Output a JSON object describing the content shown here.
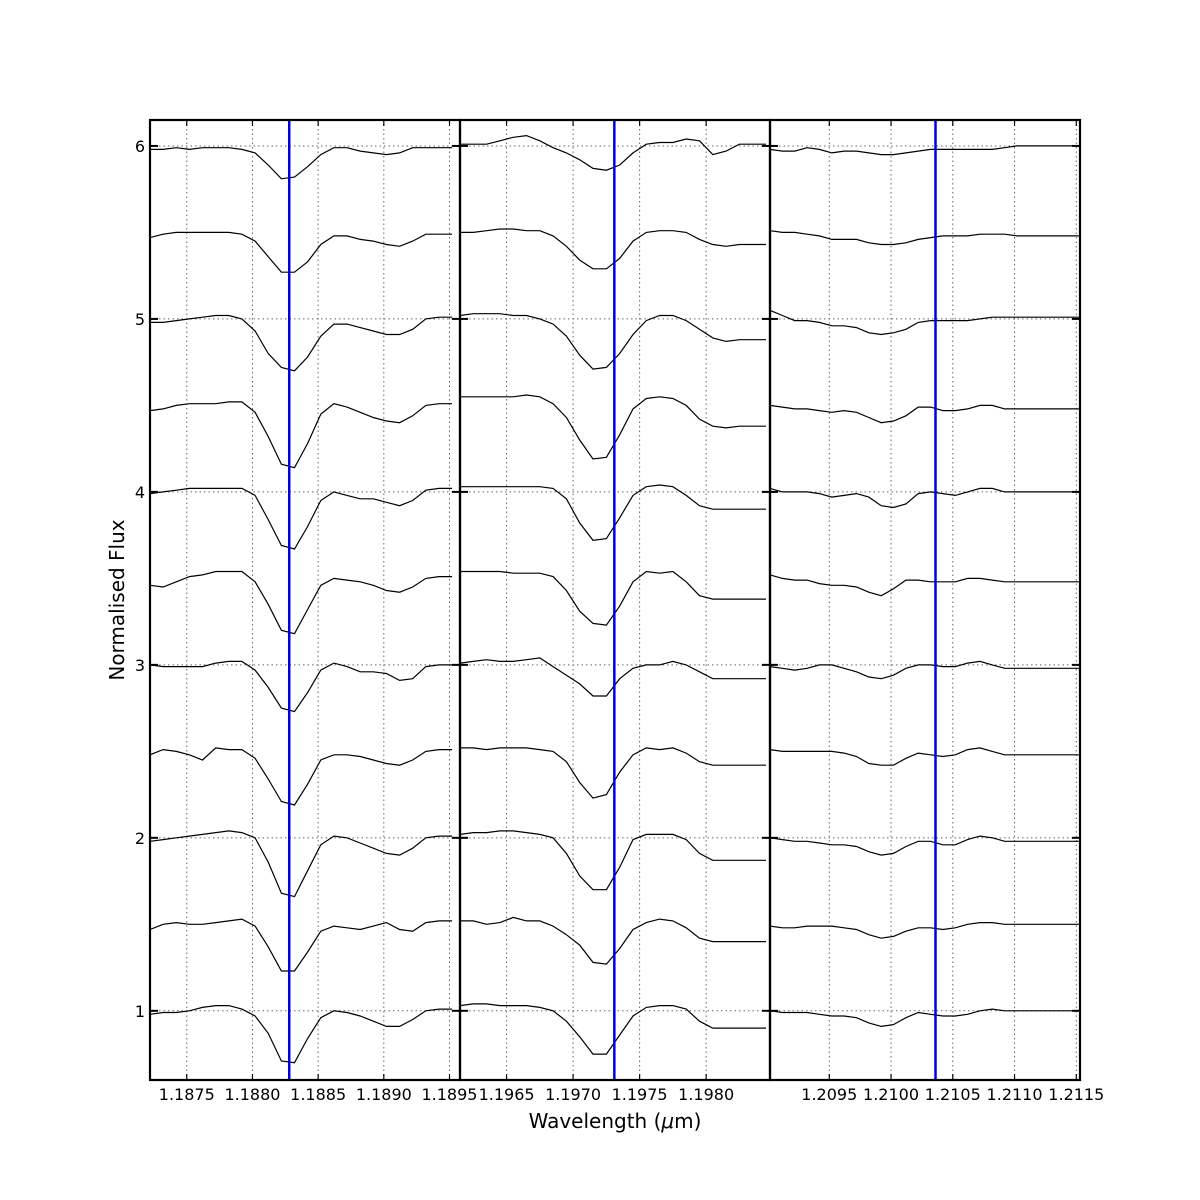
{
  "chart_data": {
    "type": "line",
    "xlabel": "Wavelength ($\\mu$m)",
    "ylabel": "Normalised Flux",
    "ylim": [
      0.6,
      6.15
    ],
    "yticks": [
      1,
      2,
      3,
      4,
      5,
      6
    ],
    "grid": true,
    "colors": {
      "spectra": "#000000",
      "marker": "#0000dd",
      "grid": "#666666"
    },
    "panels": [
      {
        "xlim": [
          1.18722,
          1.18958
        ],
        "xticks": [
          1.1875,
          1.188,
          1.1885,
          1.189,
          1.1895
        ],
        "xtick_labels": [
          "1.1875",
          "1.1880",
          "1.1885",
          "1.1890",
          "1.1895"
        ],
        "marker": 1.18828,
        "x_start": 1.18722,
        "x_step": 0.0001,
        "spectra": [
          [
            5.98,
            5.98,
            5.99,
            5.98,
            5.99,
            5.99,
            5.99,
            5.98,
            5.96,
            5.89,
            5.81,
            5.82,
            5.88,
            5.95,
            5.99,
            5.99,
            5.97,
            5.96,
            5.95,
            5.96,
            5.99,
            5.99,
            5.99,
            5.99
          ],
          [
            5.47,
            5.49,
            5.5,
            5.5,
            5.5,
            5.5,
            5.5,
            5.49,
            5.45,
            5.36,
            5.27,
            5.27,
            5.33,
            5.43,
            5.48,
            5.48,
            5.46,
            5.45,
            5.43,
            5.42,
            5.45,
            5.49,
            5.49,
            5.49
          ],
          [
            4.98,
            4.98,
            4.99,
            5.0,
            5.01,
            5.02,
            5.02,
            5.0,
            4.93,
            4.8,
            4.72,
            4.7,
            4.78,
            4.9,
            4.97,
            4.97,
            4.95,
            4.93,
            4.91,
            4.91,
            4.94,
            5.0,
            5.01,
            5.01
          ],
          [
            4.47,
            4.48,
            4.5,
            4.51,
            4.51,
            4.51,
            4.52,
            4.52,
            4.46,
            4.32,
            4.16,
            4.14,
            4.28,
            4.45,
            4.51,
            4.49,
            4.46,
            4.43,
            4.41,
            4.4,
            4.44,
            4.5,
            4.51,
            4.51
          ],
          [
            3.99,
            4.0,
            4.01,
            4.02,
            4.02,
            4.02,
            4.02,
            4.02,
            3.98,
            3.84,
            3.69,
            3.67,
            3.8,
            3.95,
            4.0,
            3.98,
            3.96,
            3.96,
            3.94,
            3.92,
            3.95,
            4.01,
            4.02,
            4.02
          ],
          [
            3.46,
            3.45,
            3.48,
            3.51,
            3.52,
            3.54,
            3.54,
            3.54,
            3.48,
            3.35,
            3.2,
            3.18,
            3.32,
            3.46,
            3.5,
            3.49,
            3.48,
            3.46,
            3.43,
            3.42,
            3.45,
            3.5,
            3.51,
            3.51
          ],
          [
            3.0,
            2.99,
            2.99,
            2.99,
            2.99,
            3.01,
            3.02,
            3.02,
            2.97,
            2.87,
            2.75,
            2.73,
            2.84,
            2.97,
            3.01,
            2.99,
            2.96,
            2.96,
            2.95,
            2.91,
            2.92,
            2.99,
            3.0,
            3.0
          ],
          [
            2.48,
            2.51,
            2.5,
            2.48,
            2.45,
            2.52,
            2.51,
            2.51,
            2.46,
            2.34,
            2.21,
            2.19,
            2.31,
            2.45,
            2.48,
            2.48,
            2.47,
            2.45,
            2.43,
            2.42,
            2.45,
            2.5,
            2.51,
            2.51
          ],
          [
            1.98,
            1.99,
            2.0,
            2.01,
            2.02,
            2.03,
            2.04,
            2.03,
            2.0,
            1.86,
            1.68,
            1.66,
            1.81,
            1.96,
            2.01,
            2.0,
            1.97,
            1.94,
            1.91,
            1.9,
            1.94,
            2.0,
            2.01,
            2.01
          ],
          [
            1.47,
            1.5,
            1.51,
            1.5,
            1.5,
            1.51,
            1.52,
            1.53,
            1.49,
            1.37,
            1.23,
            1.23,
            1.34,
            1.46,
            1.49,
            1.48,
            1.47,
            1.49,
            1.51,
            1.47,
            1.46,
            1.51,
            1.52,
            1.52
          ],
          [
            0.98,
            0.99,
            0.99,
            1.0,
            1.02,
            1.03,
            1.03,
            1.01,
            0.97,
            0.87,
            0.71,
            0.7,
            0.84,
            0.96,
            1.0,
            0.99,
            0.97,
            0.94,
            0.91,
            0.91,
            0.95,
            1.0,
            1.01,
            1.01
          ]
        ]
      },
      {
        "xlim": [
          1.19615,
          1.19848
        ],
        "xticks": [
          1.1965,
          1.197,
          1.1975,
          1.198
        ],
        "xtick_labels": [
          "1.1965",
          "1.1970",
          "1.1975",
          "1.1980"
        ],
        "marker": 1.19731,
        "x_start": 1.19615,
        "x_step": 0.0001,
        "spectra": [
          [
            6.01,
            6.01,
            6.01,
            6.03,
            6.05,
            6.06,
            6.03,
            5.99,
            5.96,
            5.92,
            5.87,
            5.86,
            5.89,
            5.96,
            6.01,
            6.02,
            6.02,
            6.04,
            6.03,
            5.95,
            5.97,
            6.01,
            6.01,
            6.01
          ],
          [
            5.5,
            5.5,
            5.51,
            5.52,
            5.52,
            5.51,
            5.51,
            5.48,
            5.42,
            5.34,
            5.29,
            5.29,
            5.35,
            5.45,
            5.5,
            5.51,
            5.51,
            5.5,
            5.46,
            5.43,
            5.42,
            5.43,
            5.43,
            5.43
          ],
          [
            5.02,
            5.03,
            5.03,
            5.03,
            5.02,
            5.02,
            5.0,
            4.97,
            4.9,
            4.79,
            4.71,
            4.72,
            4.8,
            4.91,
            4.99,
            5.02,
            5.02,
            4.99,
            4.94,
            4.89,
            4.87,
            4.88,
            4.88,
            4.88
          ],
          [
            4.55,
            4.55,
            4.55,
            4.55,
            4.55,
            4.56,
            4.55,
            4.51,
            4.43,
            4.3,
            4.19,
            4.2,
            4.33,
            4.48,
            4.54,
            4.55,
            4.54,
            4.5,
            4.42,
            4.38,
            4.37,
            4.38,
            4.38,
            4.38
          ],
          [
            4.03,
            4.03,
            4.03,
            4.03,
            4.03,
            4.03,
            4.03,
            4.02,
            3.96,
            3.82,
            3.72,
            3.73,
            3.85,
            3.98,
            4.03,
            4.04,
            4.03,
            3.98,
            3.92,
            3.9,
            3.9,
            3.9,
            3.9,
            3.9
          ],
          [
            3.54,
            3.54,
            3.54,
            3.54,
            3.53,
            3.53,
            3.53,
            3.51,
            3.43,
            3.31,
            3.24,
            3.23,
            3.34,
            3.48,
            3.54,
            3.53,
            3.54,
            3.48,
            3.4,
            3.38,
            3.38,
            3.38,
            3.38,
            3.38
          ],
          [
            3.01,
            3.02,
            3.03,
            3.02,
            3.02,
            3.03,
            3.04,
            2.99,
            2.94,
            2.89,
            2.82,
            2.82,
            2.92,
            2.98,
            3.0,
            3.0,
            3.02,
            3.0,
            2.96,
            2.92,
            2.92,
            2.92,
            2.92,
            2.92
          ],
          [
            2.52,
            2.52,
            2.51,
            2.52,
            2.52,
            2.52,
            2.51,
            2.5,
            2.44,
            2.32,
            2.23,
            2.25,
            2.38,
            2.48,
            2.52,
            2.51,
            2.52,
            2.49,
            2.44,
            2.42,
            2.42,
            2.42,
            2.42,
            2.42
          ],
          [
            2.02,
            2.03,
            2.03,
            2.04,
            2.04,
            2.03,
            2.02,
            2.0,
            1.91,
            1.78,
            1.7,
            1.7,
            1.83,
            1.99,
            2.02,
            2.02,
            2.02,
            1.99,
            1.91,
            1.87,
            1.87,
            1.87,
            1.87,
            1.87
          ],
          [
            1.52,
            1.52,
            1.5,
            1.51,
            1.54,
            1.52,
            1.52,
            1.49,
            1.44,
            1.38,
            1.28,
            1.27,
            1.36,
            1.47,
            1.51,
            1.53,
            1.52,
            1.48,
            1.42,
            1.4,
            1.4,
            1.4,
            1.4,
            1.4
          ],
          [
            1.03,
            1.04,
            1.04,
            1.03,
            1.03,
            1.03,
            1.02,
            1.0,
            0.94,
            0.85,
            0.75,
            0.75,
            0.86,
            0.97,
            1.02,
            1.03,
            1.03,
            1.01,
            0.94,
            0.9,
            0.9,
            0.9,
            0.9,
            0.9
          ]
        ]
      },
      {
        "xlim": [
          1.20902,
          1.21153
        ],
        "xticks": [
          1.2095,
          1.21,
          1.2105,
          1.211,
          1.2115
        ],
        "xtick_labels": [
          "1.2095",
          "1.2100",
          "1.2105",
          "1.2110",
          "1.2115"
        ],
        "marker": 1.21036,
        "x_start": 1.20902,
        "x_step": 0.0001,
        "spectra": [
          [
            5.98,
            5.97,
            5.97,
            5.99,
            5.98,
            5.96,
            5.97,
            5.97,
            5.96,
            5.95,
            5.95,
            5.96,
            5.97,
            5.98,
            5.98,
            5.98,
            5.98,
            5.98,
            5.98,
            5.99,
            6.0,
            6.0,
            6.0,
            6.0,
            6.0,
            6.0
          ],
          [
            5.51,
            5.5,
            5.5,
            5.49,
            5.48,
            5.46,
            5.46,
            5.46,
            5.44,
            5.43,
            5.43,
            5.44,
            5.46,
            5.47,
            5.48,
            5.48,
            5.48,
            5.49,
            5.49,
            5.49,
            5.48,
            5.48,
            5.48,
            5.48,
            5.48,
            5.48
          ],
          [
            5.05,
            5.02,
            4.99,
            4.99,
            4.98,
            4.96,
            4.96,
            4.95,
            4.92,
            4.91,
            4.92,
            4.94,
            4.98,
            4.99,
            4.99,
            4.99,
            4.99,
            5.0,
            5.01,
            5.01,
            5.01,
            5.01,
            5.01,
            5.01,
            5.01,
            5.01
          ],
          [
            4.5,
            4.49,
            4.48,
            4.48,
            4.47,
            4.46,
            4.47,
            4.46,
            4.43,
            4.4,
            4.41,
            4.44,
            4.49,
            4.49,
            4.47,
            4.47,
            4.48,
            4.5,
            4.5,
            4.48,
            4.48,
            4.48,
            4.48,
            4.48,
            4.48,
            4.48
          ],
          [
            4.02,
            4.0,
            4.0,
            4.0,
            3.99,
            3.97,
            3.98,
            3.99,
            3.97,
            3.92,
            3.91,
            3.93,
            3.99,
            4.0,
            3.99,
            3.98,
            4.0,
            4.02,
            4.02,
            4.0,
            4.0,
            4.0,
            4.0,
            4.0,
            4.0,
            4.0
          ],
          [
            3.52,
            3.5,
            3.49,
            3.49,
            3.47,
            3.46,
            3.46,
            3.45,
            3.42,
            3.4,
            3.44,
            3.49,
            3.49,
            3.48,
            3.48,
            3.48,
            3.5,
            3.5,
            3.49,
            3.48,
            3.48,
            3.48,
            3.48,
            3.48,
            3.48,
            3.48
          ],
          [
            2.99,
            2.98,
            2.97,
            2.98,
            3.0,
            3.0,
            2.98,
            2.96,
            2.93,
            2.92,
            2.94,
            2.98,
            3.0,
            3.0,
            2.99,
            2.99,
            3.01,
            3.02,
            3.0,
            2.98,
            2.98,
            2.98,
            2.98,
            2.98,
            2.98,
            2.98
          ],
          [
            2.51,
            2.5,
            2.5,
            2.5,
            2.5,
            2.5,
            2.49,
            2.47,
            2.43,
            2.42,
            2.42,
            2.46,
            2.49,
            2.48,
            2.47,
            2.48,
            2.51,
            2.52,
            2.5,
            2.48,
            2.48,
            2.48,
            2.48,
            2.48,
            2.48,
            2.48
          ],
          [
            2.0,
            1.99,
            1.98,
            1.98,
            1.97,
            1.96,
            1.96,
            1.95,
            1.92,
            1.9,
            1.91,
            1.95,
            1.98,
            1.98,
            1.96,
            1.96,
            1.99,
            2.01,
            2.0,
            1.98,
            1.98,
            1.98,
            1.98,
            1.98,
            1.98,
            1.98
          ],
          [
            1.49,
            1.48,
            1.48,
            1.49,
            1.49,
            1.49,
            1.48,
            1.47,
            1.44,
            1.42,
            1.43,
            1.46,
            1.48,
            1.48,
            1.47,
            1.48,
            1.5,
            1.51,
            1.51,
            1.5,
            1.5,
            1.5,
            1.5,
            1.5,
            1.5,
            1.5
          ],
          [
            1.0,
            0.99,
            0.99,
            0.99,
            0.98,
            0.97,
            0.97,
            0.96,
            0.93,
            0.91,
            0.92,
            0.96,
            0.99,
            0.98,
            0.97,
            0.97,
            0.98,
            1.0,
            1.01,
            1.0,
            1.0,
            1.0,
            1.0,
            1.0,
            1.0,
            1.0
          ]
        ]
      }
    ]
  }
}
